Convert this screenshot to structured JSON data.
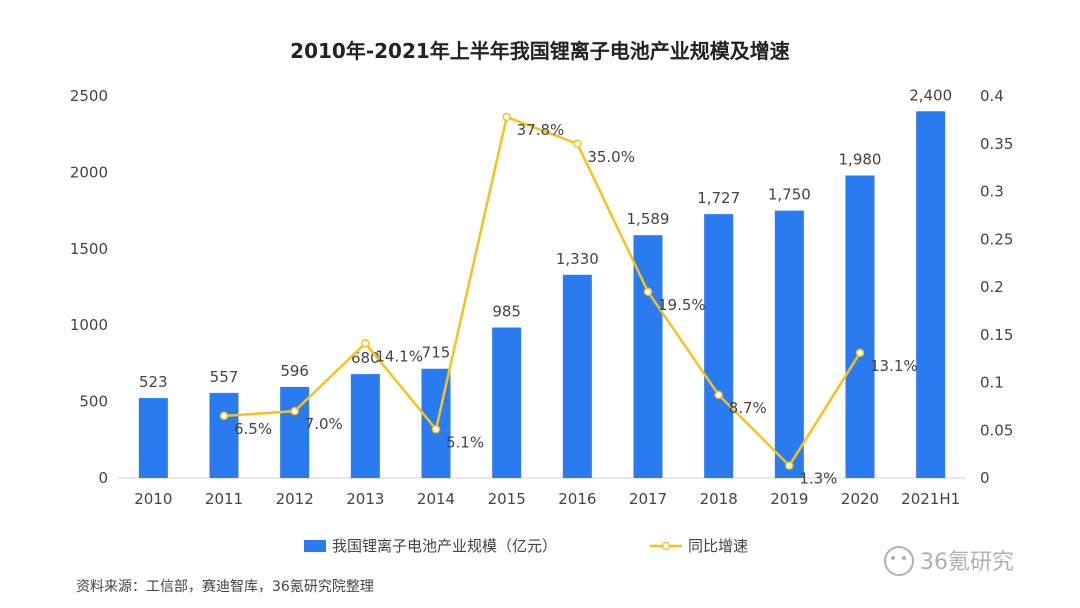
{
  "chart_data": {
    "type": "bar",
    "title": "2010年-2021年上半年我国锂离子电池产业规模及增速",
    "categories": [
      "2010",
      "2011",
      "2012",
      "2013",
      "2014",
      "2015",
      "2016",
      "2017",
      "2018",
      "2019",
      "2020",
      "2021H1"
    ],
    "series": [
      {
        "name": "我国锂离子电池产业规模（亿元）",
        "type": "bar",
        "axis": "left",
        "color": "#2b7bf0",
        "values": [
          523,
          557,
          596,
          680,
          715,
          985,
          1330,
          1589,
          1727,
          1750,
          1980,
          2400
        ],
        "labels": [
          "523",
          "557",
          "596",
          "680",
          "715",
          "985",
          "1,330",
          "1,589",
          "1,727",
          "1,750",
          "1,980",
          "2,400"
        ]
      },
      {
        "name": "同比增速",
        "type": "line",
        "axis": "right",
        "color": "#f5c21b",
        "x": [
          "2011",
          "2012",
          "2013",
          "2014",
          "2015",
          "2016",
          "2017",
          "2018",
          "2019",
          "2020"
        ],
        "values": [
          0.065,
          0.07,
          0.141,
          0.051,
          0.378,
          0.35,
          0.195,
          0.087,
          0.013,
          0.131
        ],
        "labels": [
          "6.5%",
          "7.0%",
          "14.1%",
          "5.1%",
          "37.8%",
          "35.0%",
          "19.5%",
          "8.7%",
          "1.3%",
          "13.1%"
        ]
      }
    ],
    "yleft": {
      "lim": [
        0,
        2500
      ],
      "ticks": [
        "0",
        "500",
        "1000",
        "1500",
        "2000",
        "2500"
      ]
    },
    "yright": {
      "lim": [
        0,
        0.4
      ],
      "ticks": [
        "0",
        "0.05",
        "0.1",
        "0.15",
        "0.2",
        "0.25",
        "0.3",
        "0.35",
        "0.4"
      ]
    },
    "grid": false,
    "legend": "bottom-center"
  },
  "source": "资料来源：工信部，赛迪智库，36氪研究院整理",
  "watermark": "36氪研究"
}
